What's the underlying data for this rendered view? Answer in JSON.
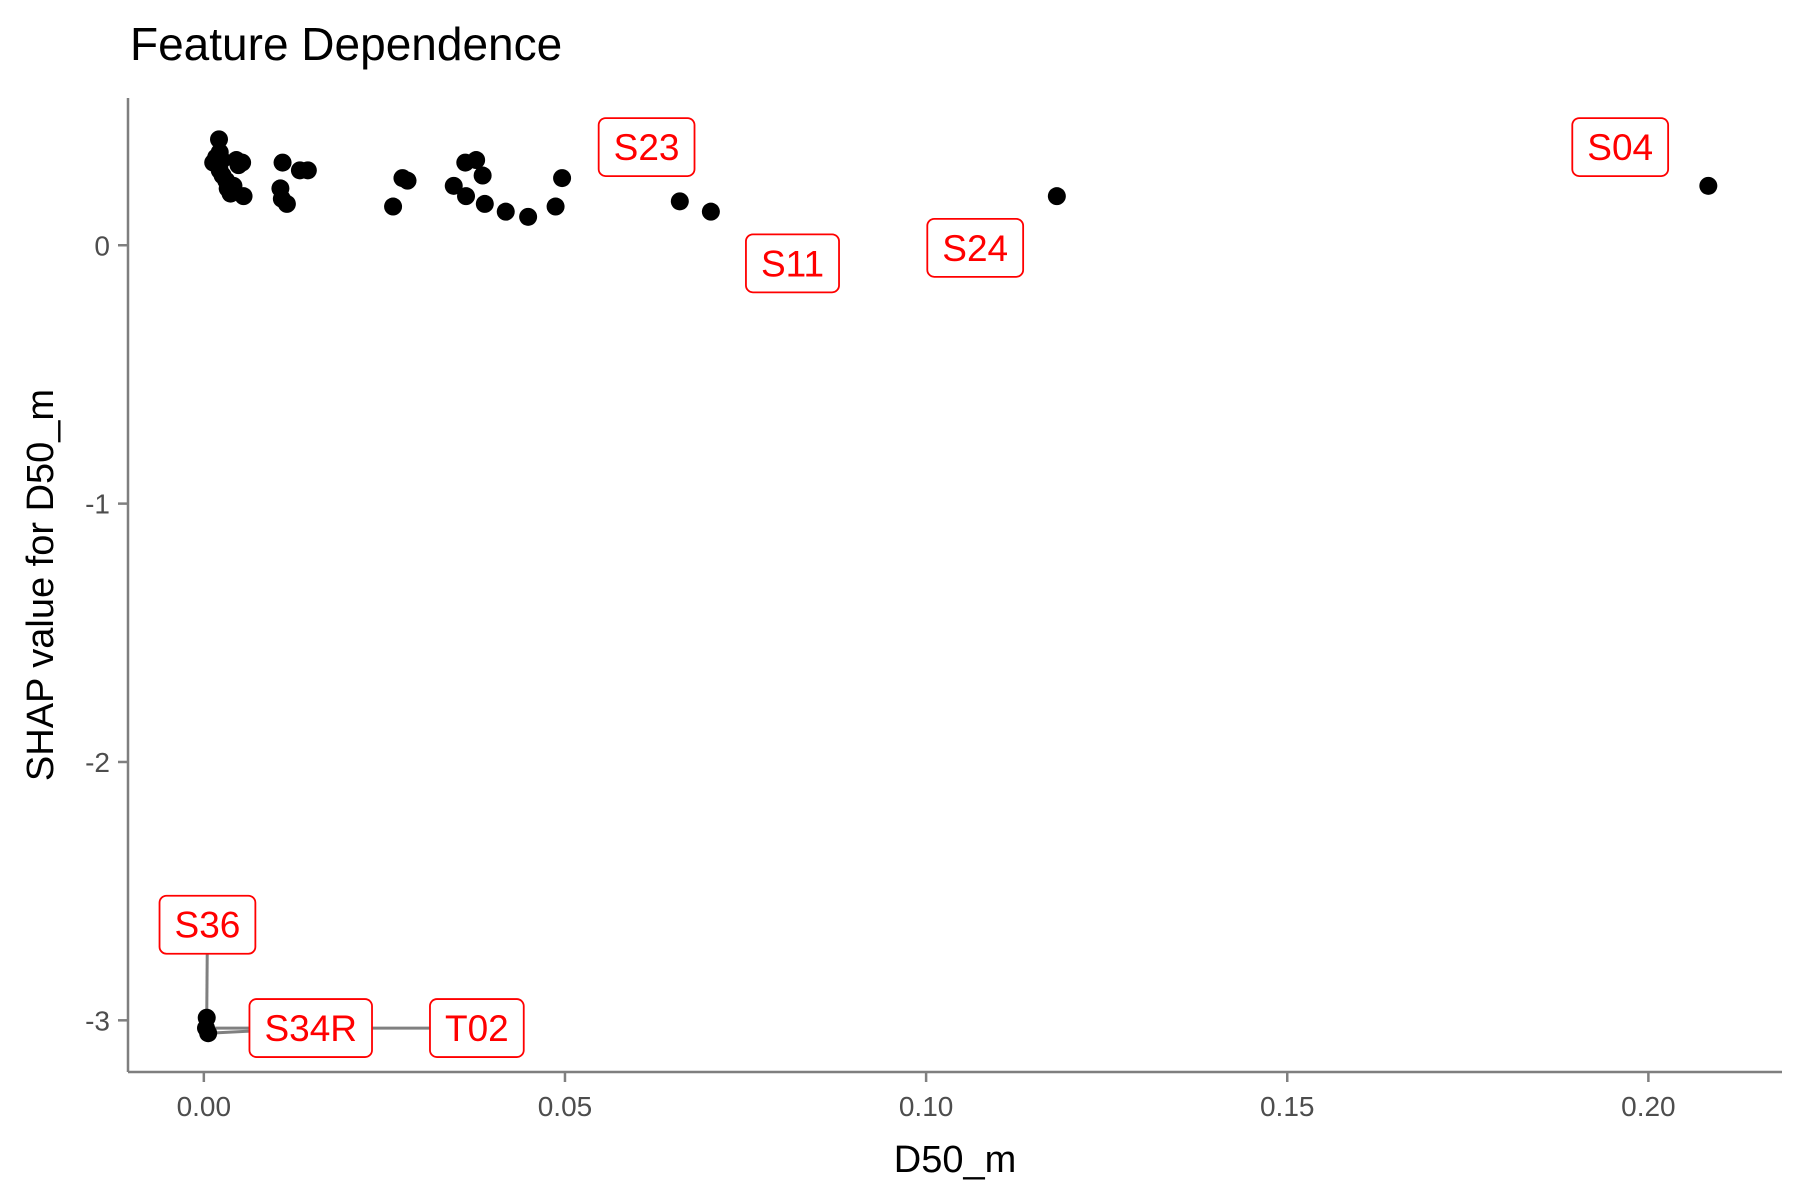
{
  "chart_data": {
    "type": "scatter",
    "title": "Feature Dependence",
    "xlabel": "D50_m",
    "ylabel": "SHAP value for D50_m",
    "xlim": [
      -0.0105,
      0.2185
    ],
    "ylim": [
      -3.2,
      0.57
    ],
    "xticks": [
      {
        "value": 0.0,
        "label": "0.00"
      },
      {
        "value": 0.05,
        "label": "0.05"
      },
      {
        "value": 0.1,
        "label": "0.10"
      },
      {
        "value": 0.15,
        "label": "0.15"
      },
      {
        "value": 0.2,
        "label": "0.20"
      }
    ],
    "yticks": [
      {
        "value": 0,
        "label": "0"
      },
      {
        "value": -1,
        "label": "-1"
      },
      {
        "value": -2,
        "label": "-2"
      },
      {
        "value": -3,
        "label": "-3"
      }
    ],
    "grid": false,
    "point_color": "#000000",
    "label_color": "#ff0000",
    "points": [
      {
        "x": 0.0021,
        "y": 0.41
      },
      {
        "x": 0.0022,
        "y": 0.36
      },
      {
        "x": 0.0017,
        "y": 0.34
      },
      {
        "x": 0.0013,
        "y": 0.32
      },
      {
        "x": 0.0025,
        "y": 0.33
      },
      {
        "x": 0.0022,
        "y": 0.29
      },
      {
        "x": 0.0026,
        "y": 0.27
      },
      {
        "x": 0.0031,
        "y": 0.25
      },
      {
        "x": 0.0033,
        "y": 0.22
      },
      {
        "x": 0.0037,
        "y": 0.2
      },
      {
        "x": 0.0041,
        "y": 0.23
      },
      {
        "x": 0.0045,
        "y": 0.33
      },
      {
        "x": 0.0048,
        "y": 0.31
      },
      {
        "x": 0.0053,
        "y": 0.32
      },
      {
        "x": 0.0055,
        "y": 0.19
      },
      {
        "x": 0.0109,
        "y": 0.32
      },
      {
        "x": 0.0106,
        "y": 0.22
      },
      {
        "x": 0.0108,
        "y": 0.18
      },
      {
        "x": 0.0115,
        "y": 0.16
      },
      {
        "x": 0.0133,
        "y": 0.29
      },
      {
        "x": 0.0144,
        "y": 0.29
      },
      {
        "x": 0.0262,
        "y": 0.15
      },
      {
        "x": 0.0275,
        "y": 0.26
      },
      {
        "x": 0.0282,
        "y": 0.25
      },
      {
        "x": 0.0346,
        "y": 0.23
      },
      {
        "x": 0.0362,
        "y": 0.32
      },
      {
        "x": 0.0363,
        "y": 0.19
      },
      {
        "x": 0.0377,
        "y": 0.33
      },
      {
        "x": 0.0386,
        "y": 0.27
      },
      {
        "x": 0.0389,
        "y": 0.16
      },
      {
        "x": 0.0418,
        "y": 0.13
      },
      {
        "x": 0.0449,
        "y": 0.11
      },
      {
        "x": 0.0487,
        "y": 0.15
      },
      {
        "x": 0.0496,
        "y": 0.26
      },
      {
        "x": 0.0659,
        "y": 0.17
      },
      {
        "x": 0.0702,
        "y": 0.13
      },
      {
        "x": 0.1181,
        "y": 0.19
      },
      {
        "x": 0.2083,
        "y": 0.23
      },
      {
        "x": 0.0004,
        "y": -2.99
      },
      {
        "x": 0.0003,
        "y": -3.03
      },
      {
        "x": 0.0006,
        "y": -3.05
      }
    ],
    "labels": [
      {
        "text": "S23",
        "x": 0.0613,
        "y": 0.38
      },
      {
        "text": "S04",
        "x": 0.1961,
        "y": 0.38
      },
      {
        "text": "S11",
        "x": 0.0815,
        "y": -0.07
      },
      {
        "text": "S24",
        "x": 0.1068,
        "y": -0.01
      },
      {
        "text": "S36",
        "x": 0.0005,
        "y": -2.63,
        "point": {
          "x": 0.0004,
          "y": -2.99
        }
      },
      {
        "text": "S34R",
        "x": 0.0148,
        "y": -3.03,
        "point": {
          "x": 0.0006,
          "y": -3.05
        }
      },
      {
        "text": "T02",
        "x": 0.0378,
        "y": -3.03,
        "point": {
          "x": 0.0003,
          "y": -3.03
        }
      }
    ]
  }
}
